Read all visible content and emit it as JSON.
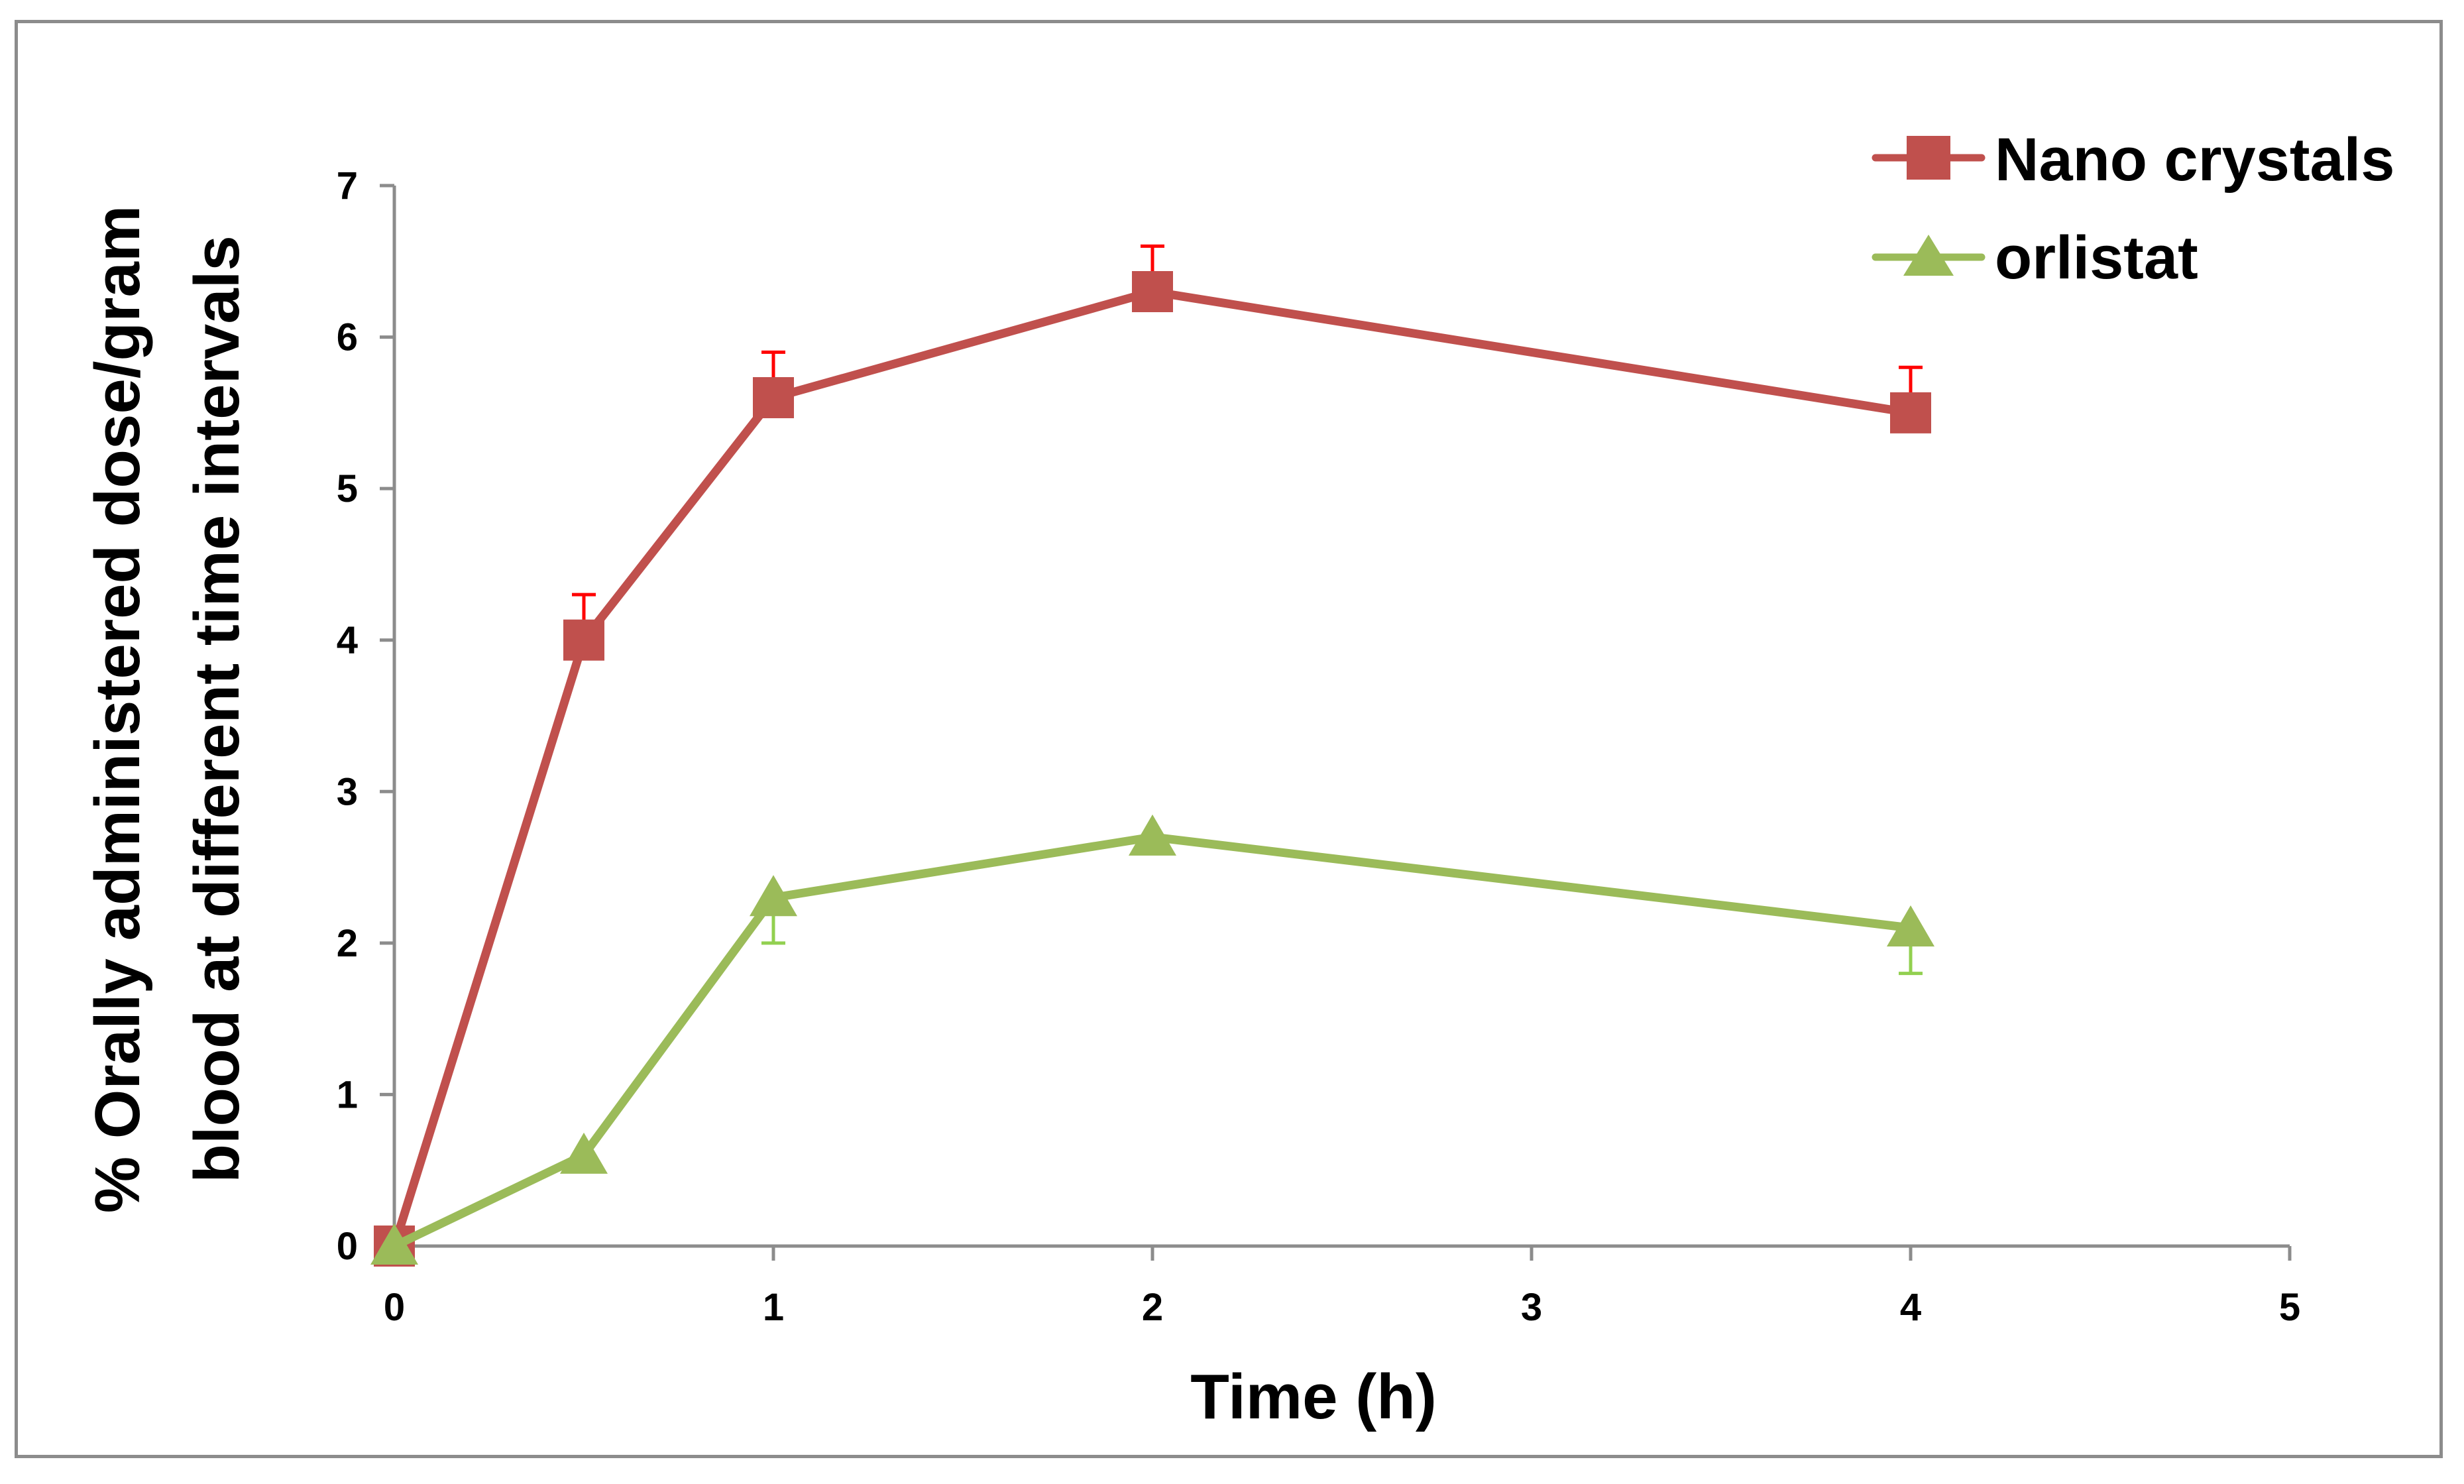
{
  "chart_data": {
    "type": "line",
    "title": "",
    "xlabel": "Time (h)",
    "ylabel_lines": [
      "% Orally administered dose/gram",
      "blood at different time intervals"
    ],
    "xlim": [
      0,
      5
    ],
    "ylim": [
      0,
      7
    ],
    "xticks": [
      0,
      1,
      2,
      3,
      4,
      5
    ],
    "yticks": [
      0,
      1,
      2,
      3,
      4,
      5,
      6,
      7
    ],
    "grid": false,
    "legend_position": "top-right",
    "series": [
      {
        "name": "Nano crystals",
        "color": "#c0504d",
        "error_color": "#ff0000",
        "marker": "square",
        "x": [
          0,
          0.5,
          1,
          2,
          4
        ],
        "y": [
          0,
          4.0,
          5.6,
          6.3,
          5.5
        ],
        "error": [
          0,
          0.3,
          0.3,
          0.3,
          0.3
        ],
        "error_direction": "up"
      },
      {
        "name": "orlistat",
        "color": "#9bbb59",
        "error_color": "#92d050",
        "marker": "triangle",
        "x": [
          0,
          0.5,
          1,
          2,
          4
        ],
        "y": [
          0,
          0.6,
          2.3,
          2.7,
          2.1
        ],
        "error": [
          0,
          0,
          0.3,
          0,
          0.3
        ],
        "error_direction": "down"
      }
    ]
  }
}
